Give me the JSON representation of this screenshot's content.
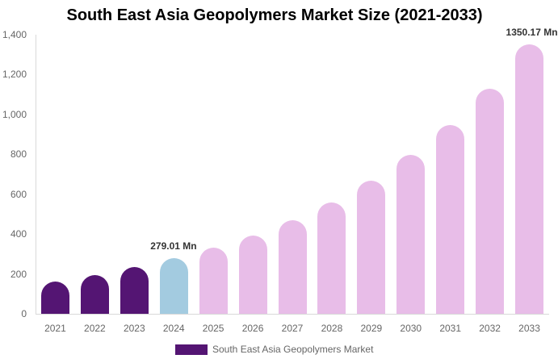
{
  "chart_data": {
    "type": "bar",
    "title": "South East Asia Geopolymers Market Size (2021-2033)",
    "xlabel": "",
    "ylabel": "",
    "ylim": [
      0,
      1400
    ],
    "yticks": [
      "0",
      "200",
      "400",
      "600",
      "800",
      "1,000",
      "1,200",
      "1,400"
    ],
    "categories": [
      "2021",
      "2022",
      "2023",
      "2024",
      "2025",
      "2026",
      "2027",
      "2028",
      "2029",
      "2030",
      "2031",
      "2032",
      "2033"
    ],
    "series": [
      {
        "name": "South East Asia Geopolymers Market",
        "values": [
          162,
          194,
          235,
          279.01,
          332,
          393,
          470,
          558,
          668,
          797,
          947,
          1129,
          1350.17
        ]
      }
    ],
    "bar_colors": [
      "#541573",
      "#541573",
      "#541573",
      "#a3cbe0",
      "#e8bde8",
      "#e8bde8",
      "#e8bde8",
      "#e8bde8",
      "#e8bde8",
      "#e8bde8",
      "#e8bde8",
      "#e8bde8",
      "#e8bde8"
    ],
    "annotations": [
      {
        "category": "2024",
        "text": "279.01 Mn"
      },
      {
        "category": "2033",
        "text": "1350.17 Mn"
      }
    ],
    "legend": {
      "position": "bottom",
      "label": "South East Asia Geopolymers Market",
      "color": "#541573"
    },
    "grid": false
  }
}
